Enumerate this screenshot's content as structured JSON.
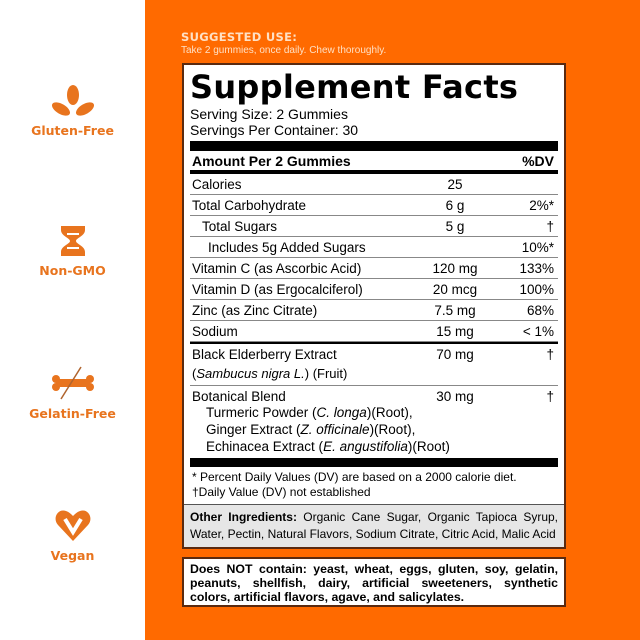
{
  "badges": [
    {
      "icon": "wheat-leaf-icon",
      "label": "Gluten-Free"
    },
    {
      "icon": "dna-icon",
      "label": "Non-GMO"
    },
    {
      "icon": "crossed-bone-icon",
      "label": "Gelatin-Free"
    },
    {
      "icon": "heart-v-icon",
      "label": "Vegan"
    }
  ],
  "colors": {
    "orange": "#ff6a00",
    "badge": "#e8741e"
  },
  "suggested": {
    "heading": "SUGGESTED USE:",
    "text": "Take 2 gummies, once daily. Chew thoroughly."
  },
  "facts": {
    "title": "Supplement Facts",
    "serving_size": "Serving Size: 2 Gummies",
    "servings_per": "Servings Per Container: 30",
    "header": {
      "amount": "Amount Per 2 Gummies",
      "dv": "%DV"
    },
    "rows": [
      {
        "name": "Calories",
        "amount": "25",
        "dv": ""
      },
      {
        "name": "Total Carbohydrate",
        "amount": "6 g",
        "dv": "2%*"
      },
      {
        "name": "Total Sugars",
        "amount": "5 g",
        "dv": "†"
      },
      {
        "name": "Includes 5g Added Sugars",
        "amount": "",
        "dv": "10%*"
      },
      {
        "name": "Vitamin C (as Ascorbic Acid)",
        "amount": "120 mg",
        "dv": "133%"
      },
      {
        "name": "Vitamin D (as Ergocalciferol)",
        "amount": "20 mcg",
        "dv": "100%"
      },
      {
        "name": "Zinc (as Zinc Citrate)",
        "amount": "7.5 mg",
        "dv": "68%"
      },
      {
        "name": "Sodium",
        "amount": "15 mg",
        "dv": "< 1%"
      }
    ],
    "elderberry": {
      "name": "Black Elderberry Extract",
      "latin": "Sambucus nigra L.",
      "part": "(Fruit)",
      "amount": "70 mg",
      "dv": "†"
    },
    "botanical": {
      "name": "Botanical Blend",
      "amount": "30 mg",
      "dv": "†",
      "items": [
        {
          "a": "Turmeric Powder (",
          "l": "C. longa",
          "b": ")(Root),"
        },
        {
          "a": "Ginger Extract (",
          "l": "Z. officinale",
          "b": ")(Root),"
        },
        {
          "a": "Echinacea Extract (",
          "l": "E. angustifolia",
          "b": ")(Root)"
        }
      ]
    },
    "foot1": "* Percent Daily Values (DV) are based on a 2000 calorie diet.",
    "foot2": "†Daily Value (DV) not established",
    "other_label": "Other Ingredients:",
    "other_text": " Organic Cane Sugar, Organic Tapioca Syrup, Water, Pectin, Natural Flavors, Sodium Citrate, Citric Acid, Malic Acid"
  },
  "does_not_contain": "Does NOT contain: yeast, wheat, eggs, gluten, soy, gelatin, peanuts, shellfish, dairy, artificial sweeteners, synthetic colors, artificial flavors, agave, and salicylates."
}
